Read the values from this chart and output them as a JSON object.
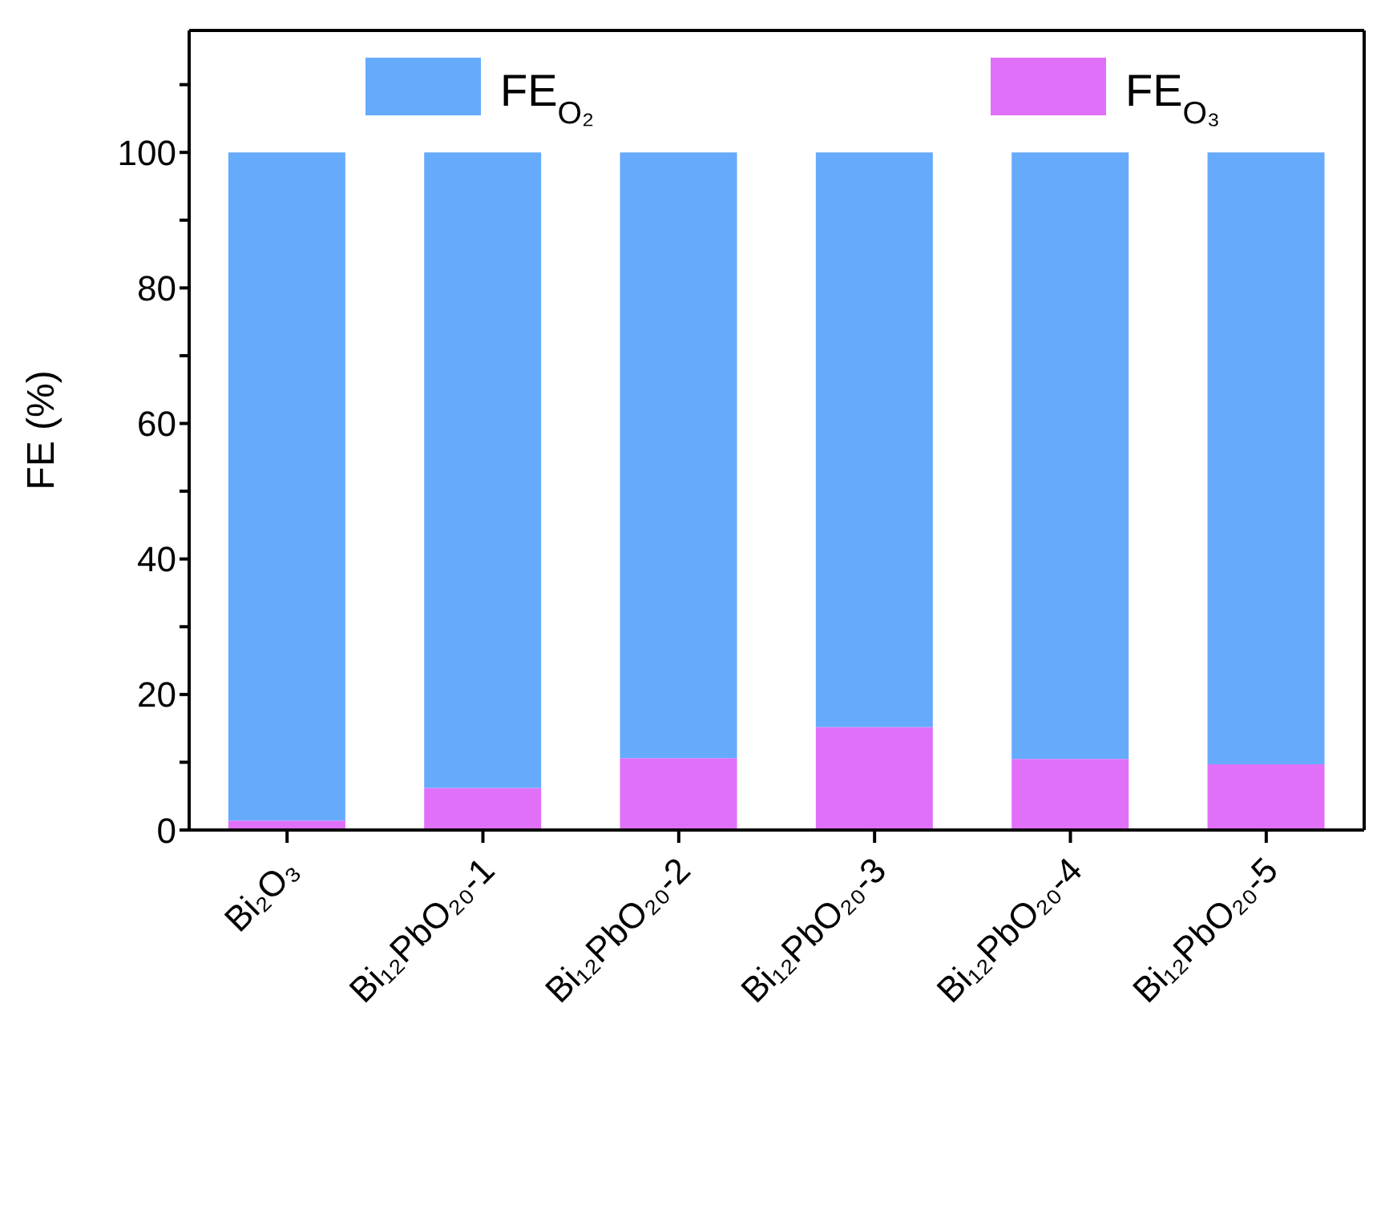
{
  "chart_data": {
    "type": "bar",
    "stacked": true,
    "ylabel": "FE (%)",
    "categories": [
      "Bi₂O₃",
      "Bi₁₂PbO₂₀-1",
      "Bi₁₂PbO₂₀-2",
      "Bi₁₂PbO₂₀-3",
      "Bi₁₂PbO₂₀-4",
      "Bi₁₂PbO₂₀-5"
    ],
    "series": [
      {
        "name": "FE$_{O₃}$",
        "color": "#e070f8",
        "values": [
          1.4,
          6.2,
          10.6,
          15.2,
          10.5,
          9.7
        ]
      },
      {
        "name": "FE$_{O₂}$",
        "color": "#66aafc",
        "values": [
          98.6,
          93.8,
          89.4,
          84.8,
          89.5,
          90.3
        ]
      }
    ],
    "ylim": [
      0,
      118
    ],
    "yticks": [
      0,
      {
        "value": 10,
        "label": null
      },
      20,
      {
        "value": 30,
        "label": null
      },
      40,
      {
        "value": 50,
        "label": null
      },
      60,
      {
        "value": 70,
        "label": null
      },
      80,
      {
        "value": 90,
        "label": null
      },
      100,
      {
        "value": 110,
        "label": null
      }
    ],
    "grid": false,
    "legend": "top"
  }
}
